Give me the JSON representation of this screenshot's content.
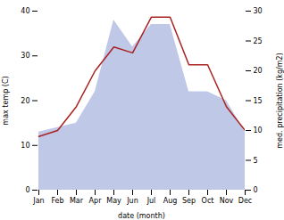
{
  "chart_data": {
    "type": "combo",
    "categories": [
      "Jan",
      "Feb",
      "Mar",
      "Apr",
      "May",
      "Jun",
      "Jul",
      "Aug",
      "Sep",
      "Oct",
      "Nov",
      "Dec"
    ],
    "series": [
      {
        "type": "area",
        "color": "#c0c8e8",
        "values": [
          13,
          14,
          15,
          22,
          38,
          32,
          37,
          37,
          22,
          22,
          20,
          13
        ]
      },
      {
        "type": "line",
        "axis": "y2",
        "color": "#aa2222",
        "values": [
          9,
          10,
          14,
          20,
          24,
          23,
          29,
          29,
          21,
          21,
          14,
          10
        ]
      }
    ],
    "xlabel": "date (month)",
    "ylabel": "max temp (C)",
    "y2label": "med. precipitation (kg/m2)",
    "ylim": [
      0,
      40
    ],
    "yticks": [
      0,
      10,
      20,
      30,
      40
    ],
    "y2lim": [
      0,
      30
    ],
    "y2ticks": [
      0,
      5,
      10,
      15,
      20,
      25,
      30
    ],
    "grid": false
  }
}
